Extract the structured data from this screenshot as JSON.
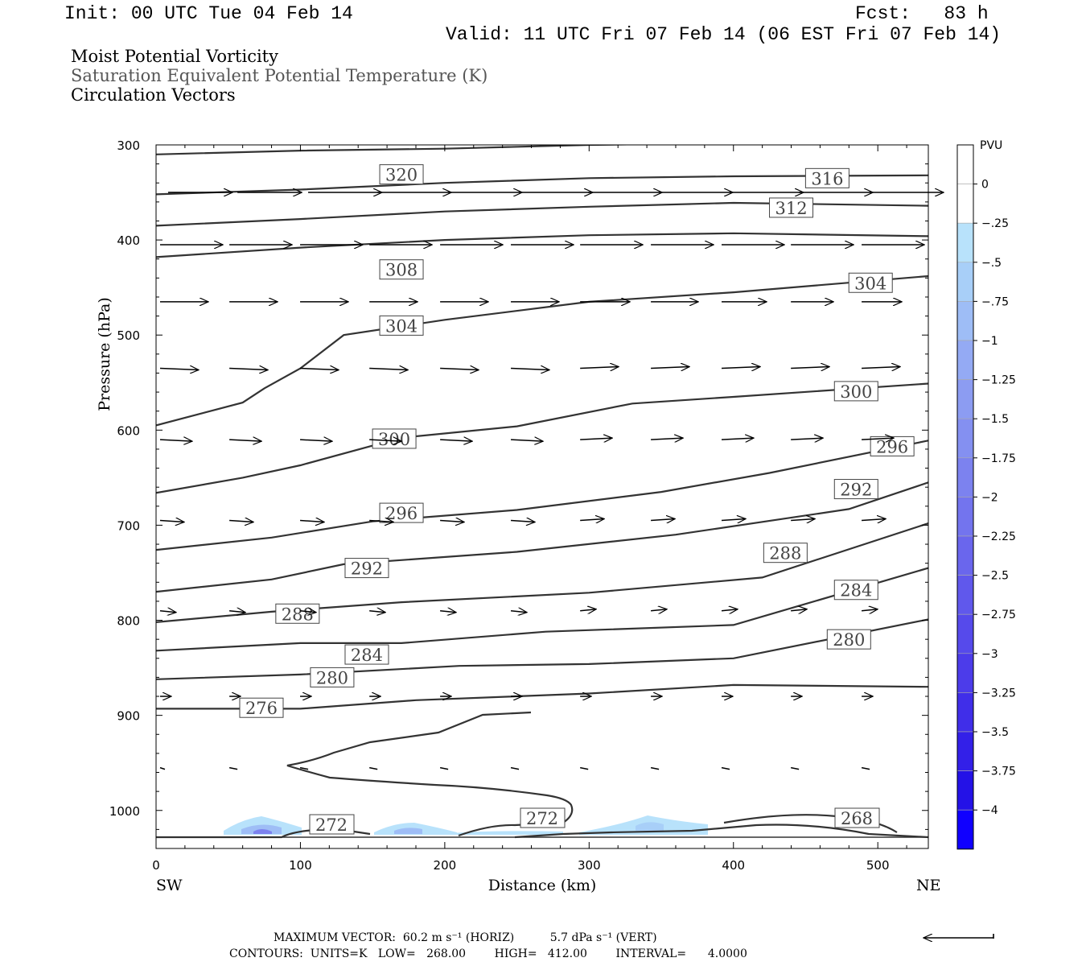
{
  "header": {
    "init": "Init: 00 UTC Tue 04 Feb 14",
    "fcst": "Fcst:   83 h",
    "valid": "Valid: 11 UTC Fri 07 Feb 14 (06 EST Fri 07 Feb 14)"
  },
  "titles": {
    "line1": "Moist Potential Vorticity",
    "line2": "Saturation Equivalent Potential Temperature (K)",
    "line3": "Circulation Vectors"
  },
  "footer": {
    "line1": "MAXIMUM VECTOR:  60.2 m s⁻¹ (HORIZ)          5.7 dPa s⁻¹ (VERT)",
    "line2": "CONTOURS:  UNITS=K   LOW=   268.00        HIGH=   412.00        INTERVAL=      4.0000"
  },
  "chart_data": {
    "type": "cross-section",
    "xlabel": "Distance (km)",
    "ylabel": "Pressure (hPa)",
    "xlim": [
      0,
      535
    ],
    "ylim": [
      300,
      1040
    ],
    "x_ticks": [
      0,
      100,
      200,
      300,
      400,
      500
    ],
    "y_ticks": [
      300,
      400,
      500,
      600,
      700,
      800,
      900,
      1000
    ],
    "left_end_label": "SW",
    "right_end_label": "NE",
    "colorbar": {
      "title": "PVU",
      "labels": [
        "0",
        "-.25",
        "-.5",
        "-.75",
        "-1",
        "-1.25",
        "-1.5",
        "-1.75",
        "-2",
        "-2.25",
        "-2.5",
        "-2.75",
        "-3",
        "-3.25",
        "-3.5",
        "-3.75",
        "-4"
      ],
      "colors": [
        "#ffffff",
        "#ffffff",
        "#b8e2fb",
        "#a8cff8",
        "#9ebdf6",
        "#94aaf4",
        "#8c9cf2",
        "#8490f1",
        "#7c82ef",
        "#7374ee",
        "#6a66ed",
        "#6058ec",
        "#564aeb",
        "#4c3cea",
        "#402ee9",
        "#3320e8",
        "#2412e7",
        "#1000ff"
      ]
    },
    "contours": [
      {
        "label": "320",
        "points": [
          [
            0,
            310
          ],
          [
            100,
            306
          ],
          [
            200,
            304
          ],
          [
            300,
            300
          ],
          [
            400,
            298
          ],
          [
            535,
            299
          ]
        ],
        "labels_at": [
          [
            170,
            331
          ]
        ]
      },
      {
        "label": "316",
        "points": [
          [
            0,
            352
          ],
          [
            100,
            347
          ],
          [
            200,
            340
          ],
          [
            300,
            335
          ],
          [
            400,
            333
          ],
          [
            535,
            332
          ]
        ],
        "labels_at": [
          [
            465,
            335
          ]
        ]
      },
      {
        "label": "312",
        "points": [
          [
            0,
            385
          ],
          [
            100,
            378
          ],
          [
            200,
            370
          ],
          [
            300,
            365
          ],
          [
            400,
            361
          ],
          [
            535,
            364
          ]
        ],
        "labels_at": [
          [
            440,
            366
          ]
        ]
      },
      {
        "label": "308",
        "points": [
          [
            0,
            418
          ],
          [
            100,
            408
          ],
          [
            200,
            400
          ],
          [
            300,
            395
          ],
          [
            400,
            393
          ],
          [
            535,
            396
          ]
        ],
        "labels_at": [
          [
            170,
            431
          ]
        ]
      },
      {
        "label": "304",
        "points": [
          [
            0,
            595
          ],
          [
            60,
            571
          ],
          [
            75,
            556
          ],
          [
            100,
            535
          ],
          [
            130,
            500
          ],
          [
            200,
            484
          ],
          [
            300,
            465
          ],
          [
            400,
            455
          ],
          [
            535,
            438
          ]
        ],
        "labels_at": [
          [
            170,
            490
          ],
          [
            495,
            445
          ]
        ]
      },
      {
        "label": "300",
        "points": [
          [
            0,
            666
          ],
          [
            60,
            650
          ],
          [
            100,
            637
          ],
          [
            170,
            608
          ],
          [
            250,
            596
          ],
          [
            330,
            572
          ],
          [
            400,
            565
          ],
          [
            535,
            551
          ]
        ],
        "labels_at": [
          [
            165,
            609
          ],
          [
            485,
            559
          ]
        ]
      },
      {
        "label": "296",
        "points": [
          [
            0,
            726
          ],
          [
            80,
            713
          ],
          [
            150,
            696
          ],
          [
            250,
            684
          ],
          [
            350,
            665
          ],
          [
            425,
            645
          ],
          [
            535,
            611
          ]
        ],
        "labels_at": [
          [
            170,
            687
          ],
          [
            510,
            617
          ]
        ]
      },
      {
        "label": "292",
        "points": [
          [
            0,
            770
          ],
          [
            80,
            757
          ],
          [
            130,
            741
          ],
          [
            250,
            728
          ],
          [
            360,
            710
          ],
          [
            480,
            683
          ],
          [
            535,
            655
          ]
        ],
        "labels_at": [
          [
            146,
            745
          ],
          [
            485,
            662
          ]
        ]
      },
      {
        "label": "288",
        "points": [
          [
            0,
            802
          ],
          [
            80,
            791
          ],
          [
            170,
            781
          ],
          [
            300,
            771
          ],
          [
            420,
            755
          ],
          [
            535,
            698
          ]
        ],
        "labels_at": [
          [
            98,
            793
          ],
          [
            436,
            729
          ]
        ]
      },
      {
        "label": "284",
        "points": [
          [
            0,
            832
          ],
          [
            100,
            824
          ],
          [
            170,
            824
          ],
          [
            270,
            812
          ],
          [
            400,
            805
          ],
          [
            535,
            745
          ]
        ],
        "labels_at": [
          [
            146,
            836
          ],
          [
            485,
            768
          ]
        ]
      },
      {
        "label": "280",
        "points": [
          [
            0,
            862
          ],
          [
            100,
            857
          ],
          [
            210,
            848
          ],
          [
            300,
            846
          ],
          [
            400,
            840
          ],
          [
            535,
            799
          ]
        ],
        "labels_at": [
          [
            122,
            860
          ],
          [
            480,
            820
          ]
        ]
      },
      {
        "label": "276",
        "points": [
          [
            0,
            893
          ],
          [
            100,
            893
          ],
          [
            180,
            884
          ],
          [
            300,
            877
          ],
          [
            400,
            868
          ],
          [
            535,
            870
          ]
        ],
        "labels_at": [
          [
            73,
            892
          ]
        ]
      }
    ],
    "vector_rows_hpa": [
      350,
      405,
      465,
      535,
      610,
      695,
      790,
      880,
      955
    ],
    "vector_columns_km": [
      0,
      48,
      97,
      145,
      194,
      243,
      291,
      340,
      389,
      437,
      486
    ]
  }
}
